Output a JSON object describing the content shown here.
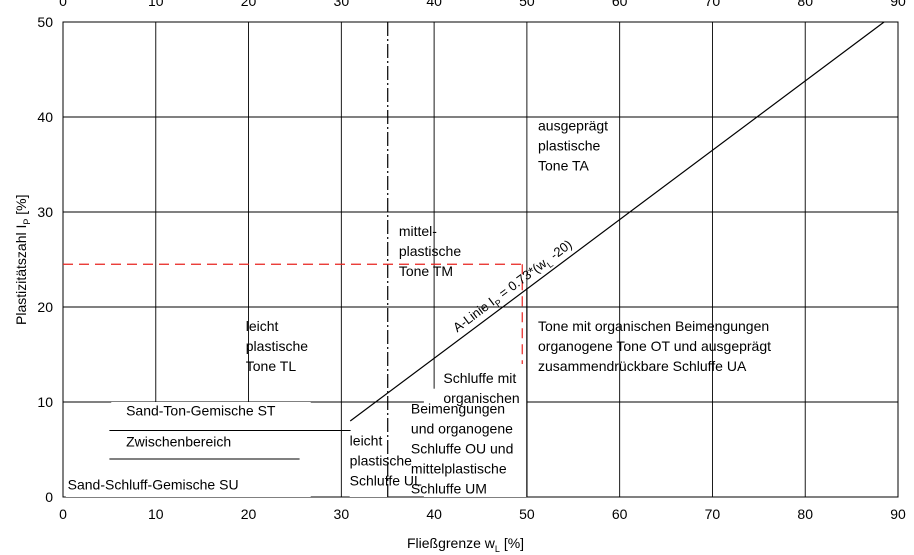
{
  "chart_data": {
    "type": "line",
    "xlabel": "Fließgrenze w",
    "xlabel_sub": "L",
    "xlabel_unit": "[%]",
    "ylabel": "Plastizitätszahl I",
    "ylabel_sub": "P",
    "ylabel_unit": "[%]",
    "xlim": [
      0,
      90
    ],
    "ylim": [
      0,
      50
    ],
    "x_ticks": [
      0,
      10,
      20,
      30,
      40,
      50,
      60,
      70,
      80,
      90
    ],
    "y_ticks": [
      0,
      10,
      20,
      30,
      40,
      50
    ],
    "grid": true,
    "series": [
      {
        "name": "A-Linie",
        "x": [
          30.96,
          88.5
        ],
        "y": [
          8.0,
          50.0
        ]
      }
    ],
    "a_line_label": {
      "prefix": "A-Linie I",
      "sub1": "P",
      "middle": " = 0.73*(w",
      "sub2": "L",
      "suffix": " -20)"
    },
    "reference_lines": {
      "dashdot_x": 35,
      "boundary_x": 50,
      "st_line": {
        "x": [
          5,
          31
        ],
        "y": 7
      },
      "su_line": {
        "x": [
          5,
          25.5
        ],
        "y": 4
      }
    },
    "red_marker": {
      "x": 49.5,
      "y": 24.5,
      "color": "#e8231f"
    },
    "regions": [
      {
        "id": "ta",
        "lines": [
          "ausgeprägt",
          "plastische",
          "Tone TA"
        ],
        "x": 51.2,
        "y": 38.6
      },
      {
        "id": "tm",
        "lines": [
          "mittel-",
          "plastische",
          "Tone TM"
        ],
        "x": 36.2,
        "y": 27.5
      },
      {
        "id": "tl",
        "lines": [
          "leicht",
          "plastische",
          "Tone TL"
        ],
        "x": 19.7,
        "y": 17.5
      },
      {
        "id": "ot",
        "lines": [
          "Tone mit organischen Beimengungen",
          "organogene Tone OT und ausgeprägt",
          "zusammendrückbare Schluffe UA"
        ],
        "x": 51.2,
        "y": 17.5
      },
      {
        "id": "ou",
        "lines": [
          "Schluffe mit",
          "organischen"
        ],
        "x": 41.0,
        "y": 12.0
      },
      {
        "id": "ou2",
        "lines": [
          "Beimengungen",
          "und organogene",
          "Schluffe OU und",
          "mittelplastische",
          "Schluffe UM"
        ],
        "x": 37.5,
        "y": 8.8
      },
      {
        "id": "ul",
        "lines": [
          "leicht",
          "plastische",
          "Schluffe UL"
        ],
        "x": 30.9,
        "y": 5.4
      },
      {
        "id": "st",
        "lines": [
          "Sand-Ton-Gemische ST"
        ],
        "x": 6.8,
        "y": 8.6
      },
      {
        "id": "zw",
        "lines": [
          "Zwischenbereich"
        ],
        "x": 6.8,
        "y": 5.3
      },
      {
        "id": "su",
        "lines": [
          "Sand-Schluff-Gemische SU"
        ],
        "x": 0.5,
        "y": 0.8
      }
    ]
  }
}
